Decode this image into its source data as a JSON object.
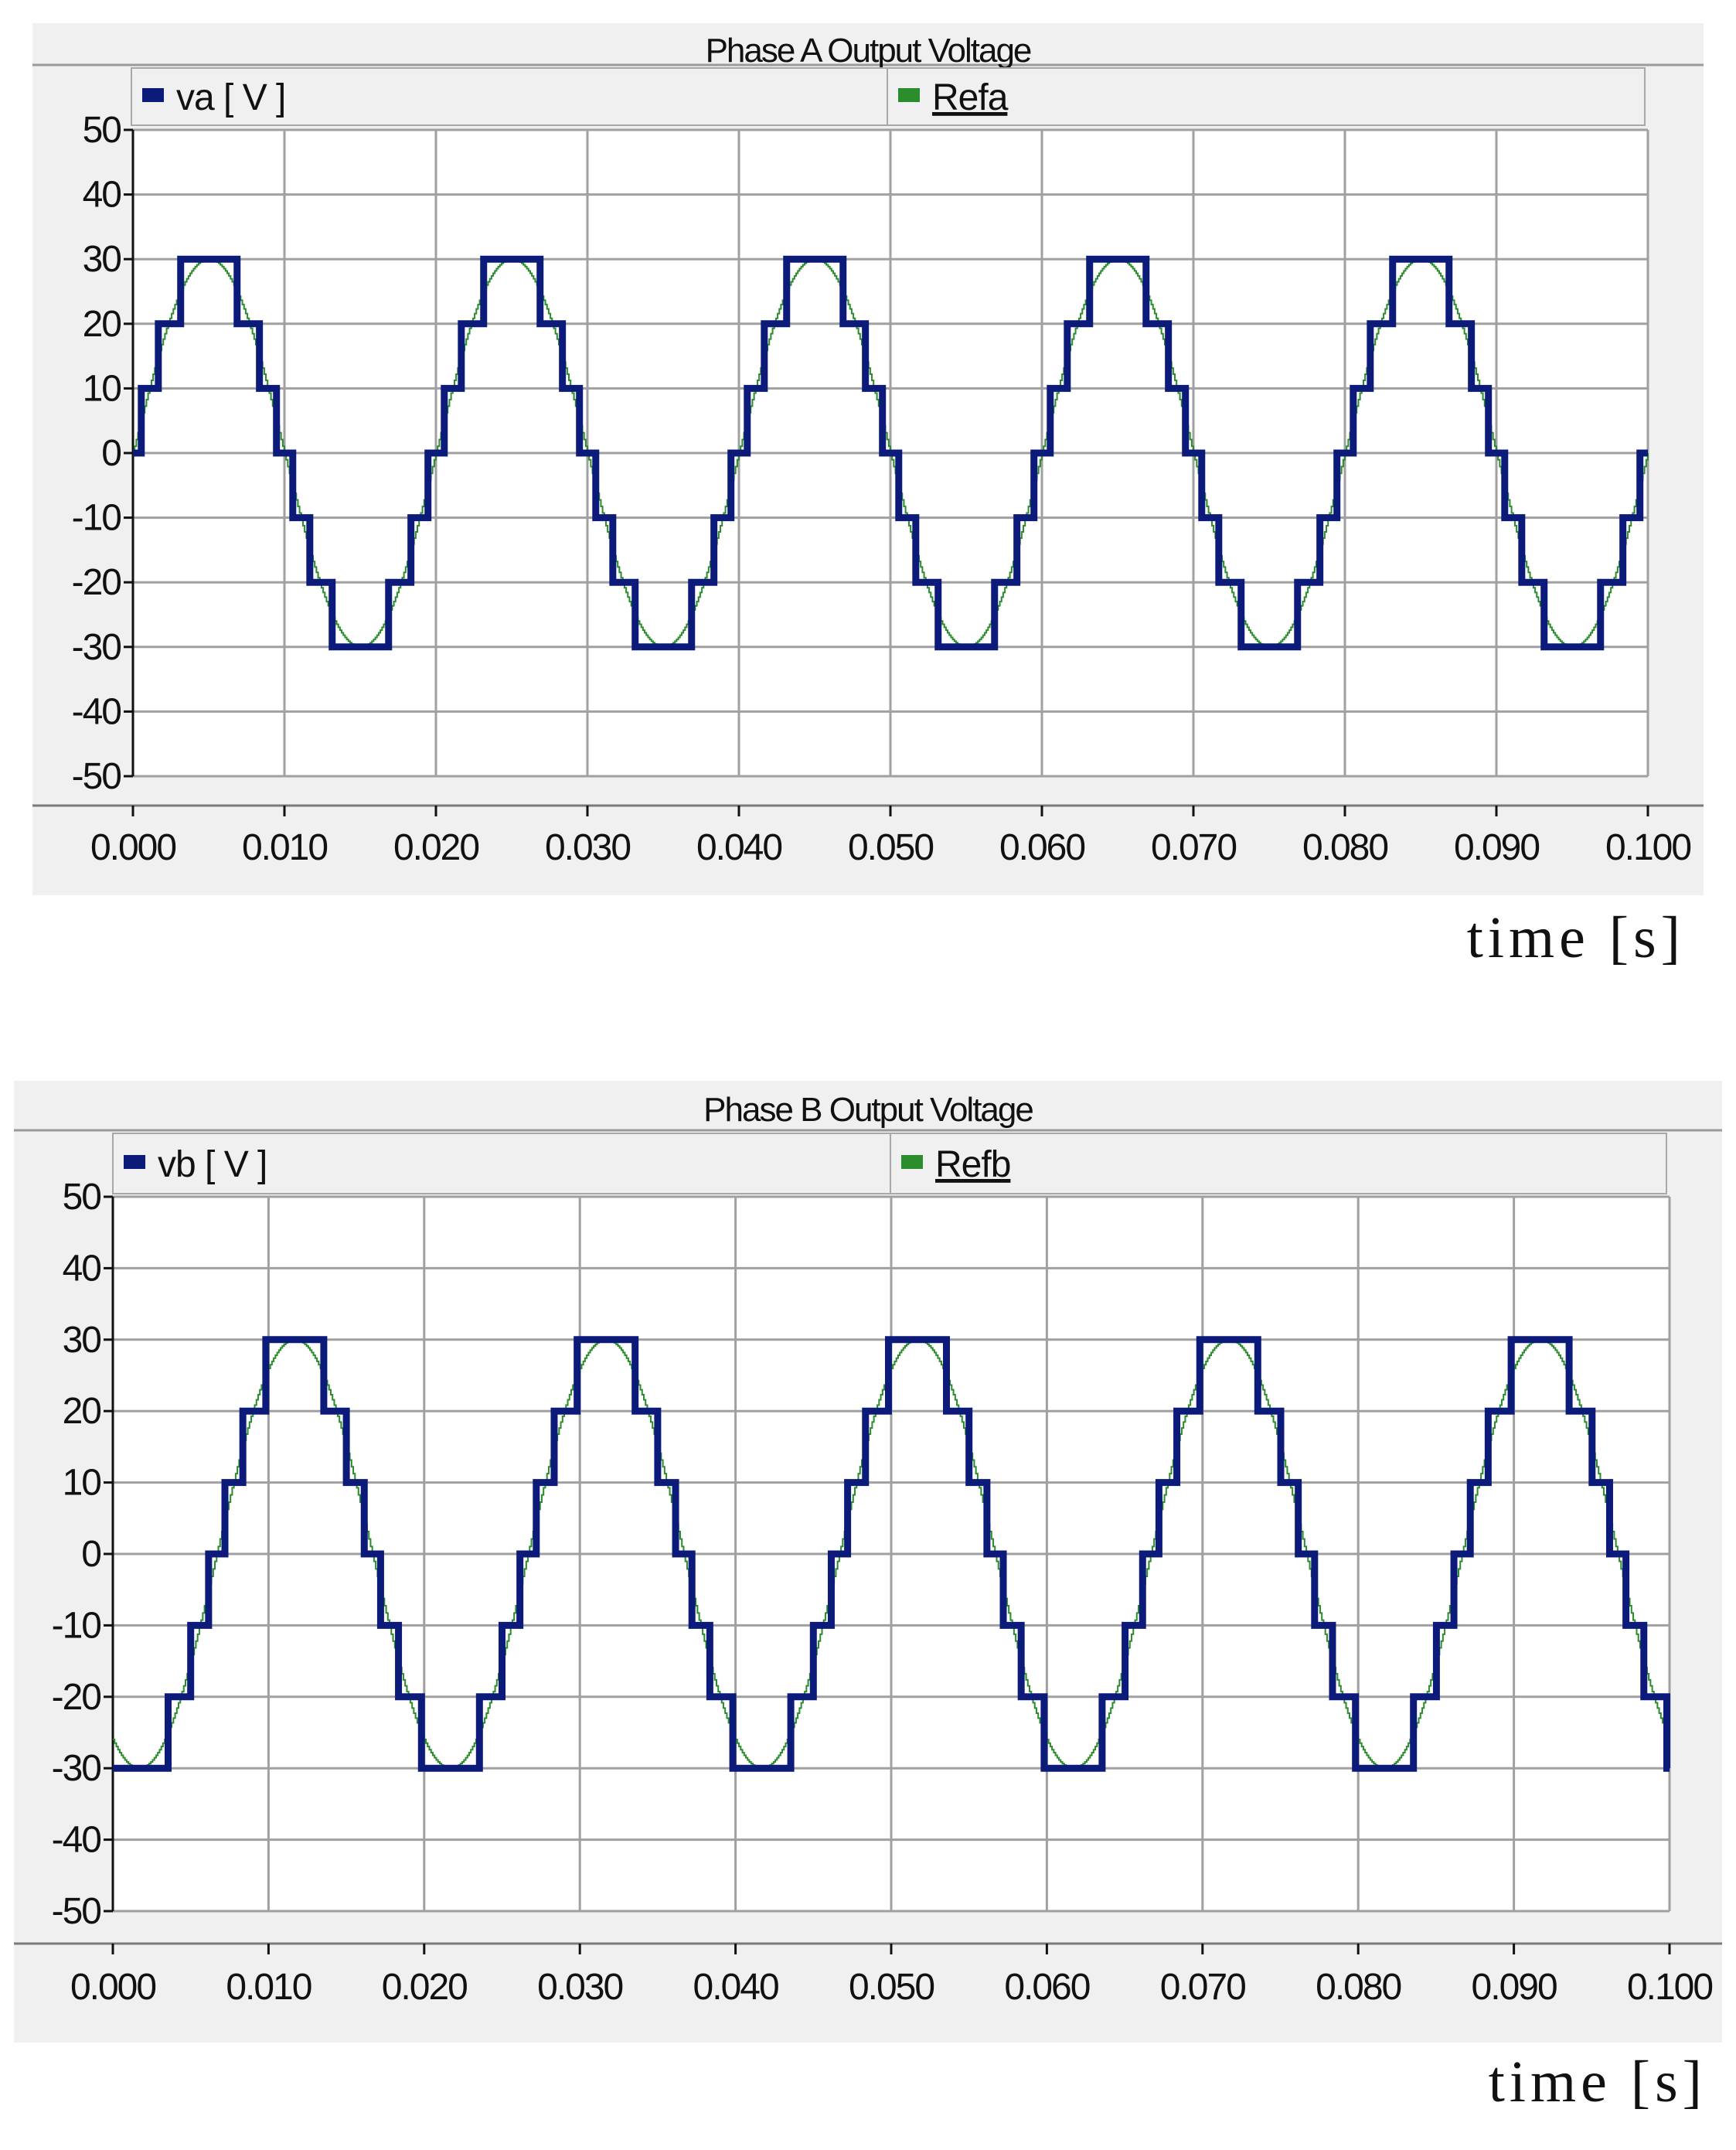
{
  "charts": [
    {
      "title": "Phase  A  Output Voltage",
      "xlabel": "time [s]",
      "chart_data": {
        "type": "line",
        "title": "Phase  A  Output Voltage",
        "xlabel": "time [s]",
        "ylabel": "",
        "xlim": [
          0,
          0.1
        ],
        "ylim": [
          -50,
          50
        ],
        "xticks": [
          "0.000",
          "0.010",
          "0.020",
          "0.030",
          "0.040",
          "0.050",
          "0.060",
          "0.070",
          "0.080",
          "0.090",
          "0.100"
        ],
        "yticks": [
          "50",
          "40",
          "30",
          "20",
          "10",
          "0",
          "-10",
          "-20",
          "-30",
          "-40",
          "-50"
        ],
        "grid": true,
        "legend_position": "top",
        "series": [
          {
            "name": "va [ V ]",
            "color": "#0c1a7a",
            "kind": "staircase",
            "frequency_hz": 50,
            "phase_deg": 0,
            "step_v": 10,
            "levels": 3,
            "amplitude": 30
          },
          {
            "name": "Refa",
            "color": "#2a8c2a",
            "kind": "sine",
            "frequency_hz": 50,
            "phase_deg": 0,
            "amplitude": 30
          }
        ]
      }
    },
    {
      "title": "Phase B  Output Voltage",
      "xlabel": "time [s]",
      "chart_data": {
        "type": "line",
        "title": "Phase B  Output Voltage",
        "xlabel": "time [s]",
        "ylabel": "",
        "xlim": [
          0,
          0.1
        ],
        "ylim": [
          -50,
          50
        ],
        "xticks": [
          "0.000",
          "0.010",
          "0.020",
          "0.030",
          "0.040",
          "0.050",
          "0.060",
          "0.070",
          "0.080",
          "0.090",
          "0.100"
        ],
        "yticks": [
          "50",
          "40",
          "30",
          "20",
          "10",
          "0",
          "-10",
          "-20",
          "-30",
          "-40",
          "-50"
        ],
        "grid": true,
        "legend_position": "top",
        "series": [
          {
            "name": "vb [ V ]",
            "color": "#0c1a7a",
            "kind": "staircase",
            "frequency_hz": 50,
            "phase_deg": -120,
            "step_v": 10,
            "levels": 3,
            "amplitude": 30
          },
          {
            "name": "Refb",
            "color": "#2a8c2a",
            "kind": "sine",
            "frequency_hz": 50,
            "phase_deg": -120,
            "amplitude": 30
          }
        ]
      }
    }
  ]
}
